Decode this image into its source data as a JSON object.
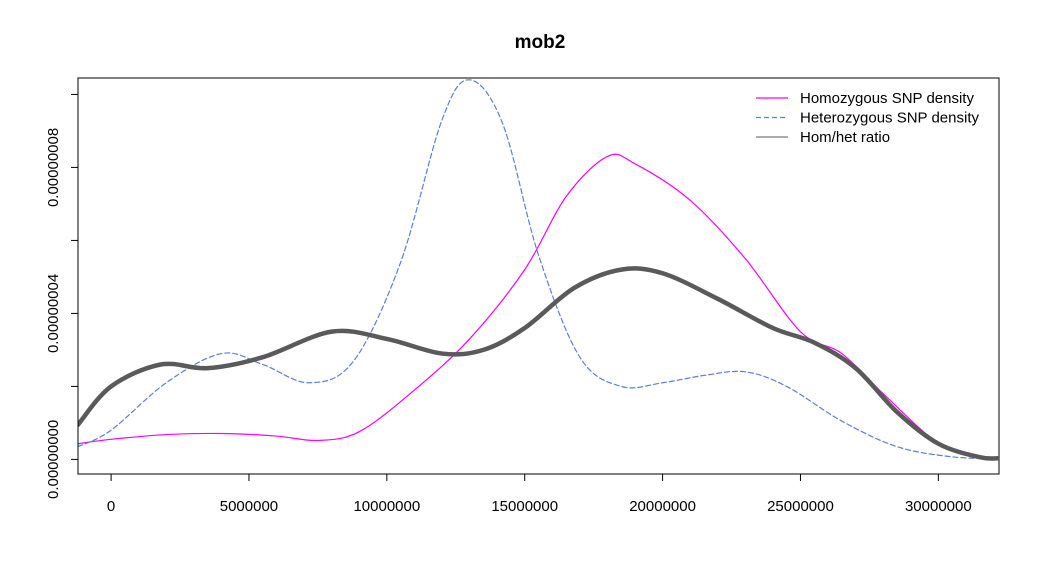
{
  "chart_data": {
    "type": "line",
    "title": "mob2",
    "xlabel": "",
    "ylabel": "",
    "xlim": [
      -1200000,
      32200000
    ],
    "ylim": [
      -4e-09,
      1.045e-07
    ],
    "x_ticks": [
      0,
      5000000,
      10000000,
      15000000,
      20000000,
      25000000,
      30000000
    ],
    "x_tick_labels": [
      "0",
      "5000000",
      "10000000",
      "15000000",
      "20000000",
      "25000000",
      "30000000"
    ],
    "y_ticks": [
      0,
      2e-08,
      4e-08,
      6e-08,
      8e-08,
      1e-07
    ],
    "y_tick_labels": [
      "0.00000000",
      "",
      "0.00000004",
      "",
      "0.00000008",
      ""
    ],
    "grid": false,
    "legend_position": "top-right",
    "series": [
      {
        "name": "Homozygous SNP density",
        "color": "#ff00ff",
        "style": "solid",
        "x": [
          -1200000,
          0,
          2000000,
          4000000,
          6000000,
          7500000,
          9000000,
          11000000,
          13000000,
          15000000,
          16500000,
          18000000,
          19000000,
          21000000,
          23000000,
          25000000,
          26500000,
          28000000,
          30000000,
          31500000,
          32200000
        ],
        "y": [
          4.3e-09,
          5.5e-09,
          6.8e-09,
          7.1e-09,
          6.4e-09,
          5.2e-09,
          7.6e-09,
          1.9e-08,
          3.3e-08,
          5.2e-08,
          7.2e-08,
          8.3e-08,
          8.1e-08,
          7.1e-08,
          5.5e-08,
          3.5e-08,
          2.9e-08,
          1.8e-08,
          4.4e-09,
          5e-10,
          1e-10
        ]
      },
      {
        "name": "Heterozygous SNP density",
        "color": "#5b7fd8",
        "style": "dashed",
        "x": [
          -1200000,
          0,
          2000000,
          4000000,
          5500000,
          7200000,
          8800000,
          10500000,
          12000000,
          13000000,
          14200000,
          15500000,
          17000000,
          18500000,
          20000000,
          21500000,
          23000000,
          24500000,
          26500000,
          28500000,
          30500000,
          32200000
        ],
        "y": [
          3.5e-09,
          8e-09,
          2.1e-08,
          2.9e-08,
          2.6e-08,
          2.1e-08,
          2.7e-08,
          5.4e-08,
          9.3e-08,
          1.04e-07,
          9.2e-08,
          5.6e-08,
          2.8e-08,
          2e-08,
          2.1e-08,
          2.3e-08,
          2.4e-08,
          2e-08,
          1.05e-08,
          3.5e-09,
          7e-10,
          2e-10
        ]
      },
      {
        "name": "Hom/het ratio",
        "color": "#5a5a5a",
        "style": "solid-thick",
        "x": [
          -1200000,
          0,
          1800000,
          3500000,
          5500000,
          8000000,
          10000000,
          12000000,
          13500000,
          15000000,
          16800000,
          18500000,
          20000000,
          22000000,
          24000000,
          25500000,
          27000000,
          28500000,
          30000000,
          31500000,
          32200000
        ],
        "y": [
          9.5e-09,
          2e-08,
          2.6e-08,
          2.5e-08,
          2.8e-08,
          3.5e-08,
          3.3e-08,
          2.9e-08,
          3e-08,
          3.6e-08,
          4.7e-08,
          5.2e-08,
          5.1e-08,
          4.4e-08,
          3.6e-08,
          3.2e-08,
          2.5e-08,
          1.3e-08,
          4.3e-09,
          6e-10,
          3e-10
        ]
      }
    ]
  }
}
